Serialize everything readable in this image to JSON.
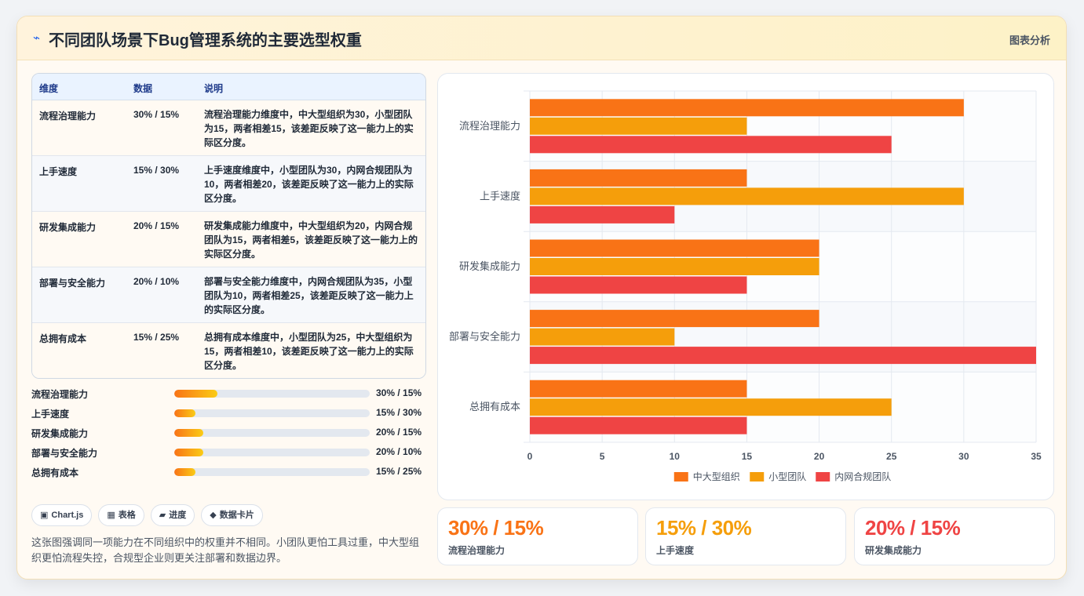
{
  "header": {
    "icon": "lightning-icon",
    "title": "不同团队场景下Bug管理系统的主要选型权重",
    "tag": "图表分析"
  },
  "table": {
    "headers": [
      "维度",
      "数据",
      "说明"
    ],
    "rows": [
      {
        "dim": "流程治理能力",
        "data": "30% / 15%",
        "desc": "流程治理能力维度中，中大型组织为30，小型团队为15，两者相差15，该差距反映了这一能力上的实际区分度。"
      },
      {
        "dim": "上手速度",
        "data": "15% / 30%",
        "desc": "上手速度维度中，小型团队为30，内网合规团队为10，两者相差20，该差距反映了这一能力上的实际区分度。"
      },
      {
        "dim": "研发集成能力",
        "data": "20% / 15%",
        "desc": "研发集成能力维度中，中大型组织为20，内网合规团队为15，两者相差5，该差距反映了这一能力上的实际区分度。"
      },
      {
        "dim": "部署与安全能力",
        "data": "20% / 10%",
        "desc": "部署与安全能力维度中，内网合规团队为35，小型团队为10，两者相差25，该差距反映了这一能力上的实际区分度。"
      },
      {
        "dim": "总拥有成本",
        "data": "15% / 25%",
        "desc": "总拥有成本维度中，小型团队为25，中大型组织为15，两者相差10，该差距反映了这一能力上的实际区分度。"
      }
    ]
  },
  "progress": [
    {
      "label": "流程治理能力",
      "value": "30% / 15%",
      "fill": 0.22
    },
    {
      "label": "上手速度",
      "value": "15% / 30%",
      "fill": 0.11
    },
    {
      "label": "研发集成能力",
      "value": "20% / 15%",
      "fill": 0.15
    },
    {
      "label": "部署与安全能力",
      "value": "20% / 10%",
      "fill": 0.15
    },
    {
      "label": "总拥有成本",
      "value": "15% / 25%",
      "fill": 0.11
    }
  ],
  "chips": [
    {
      "icon": "chart-icon",
      "glyph": "▣",
      "label": "Chart.js"
    },
    {
      "icon": "table-icon",
      "glyph": "▦",
      "label": "表格"
    },
    {
      "icon": "progress-icon",
      "glyph": "▰",
      "label": "进度"
    },
    {
      "icon": "card-icon",
      "glyph": "◆",
      "label": "数据卡片"
    }
  ],
  "description": "这张图强调同一项能力在不同组织中的权重并不相同。小团队更怕工具过重，中大型组织更怕流程失控，合规型企业则更关注部署和数据边界。",
  "stats": [
    {
      "value": "30% / 15%",
      "label": "流程治理能力",
      "color": "#f97316"
    },
    {
      "value": "15% / 30%",
      "label": "上手速度",
      "color": "#f59e0b"
    },
    {
      "value": "20% / 15%",
      "label": "研发集成能力",
      "color": "#ef4444"
    }
  ],
  "chart_data": {
    "type": "bar",
    "orientation": "horizontal",
    "categories": [
      "流程治理能力",
      "上手速度",
      "研发集成能力",
      "部署与安全能力",
      "总拥有成本"
    ],
    "series": [
      {
        "name": "中大型组织",
        "color": "#f97316",
        "values": [
          30,
          15,
          20,
          20,
          15
        ]
      },
      {
        "name": "小型团队",
        "color": "#f59e0b",
        "values": [
          15,
          30,
          20,
          10,
          25
        ]
      },
      {
        "name": "内网合规团队",
        "color": "#ef4444",
        "values": [
          25,
          10,
          15,
          35,
          15
        ]
      }
    ],
    "xlim": [
      0,
      35
    ],
    "xticks": [
      0,
      5,
      10,
      15,
      20,
      25,
      30,
      35
    ],
    "grid": true,
    "legend": "bottom"
  }
}
